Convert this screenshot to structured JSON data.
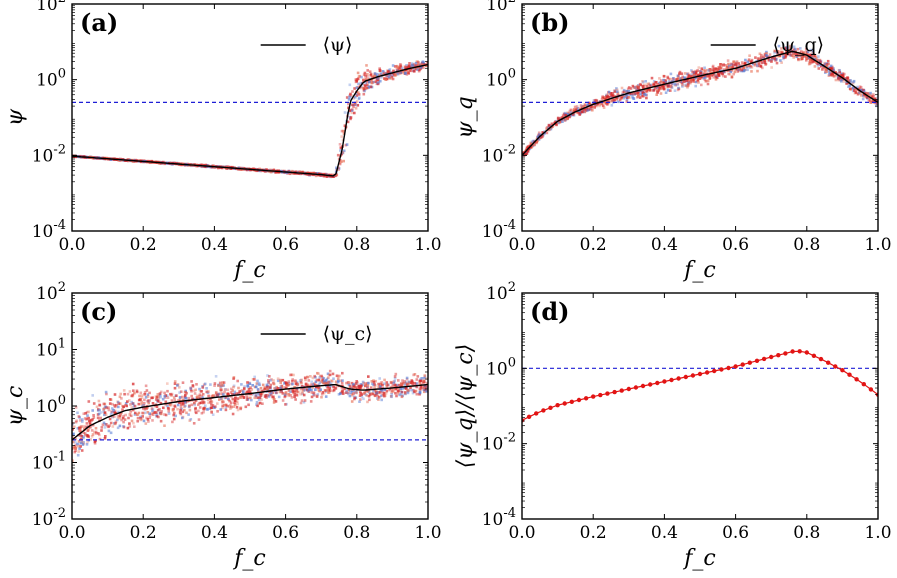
{
  "figure": {
    "background": "#ffffff",
    "colors": {
      "mean_line": "#000000",
      "reference_line": "#1f1fd6",
      "scatter_red": "#d62728",
      "scatter_orange": "#e8735a",
      "scatter_blue": "#5b7fd6",
      "ratio_points": "#e21414"
    }
  },
  "chart_data": [
    {
      "type": "scatter",
      "panel": "(a)",
      "xlabel": "f_c",
      "ylabel": "ψ",
      "x_ticks": [
        "0.0",
        "0.2",
        "0.4",
        "0.6",
        "0.8",
        "1.0"
      ],
      "y_ticks": [
        "10^-4",
        "10^-2",
        "10^0",
        "10^2"
      ],
      "xlim": [
        0.0,
        1.0
      ],
      "ylim_log10": [
        -4,
        2
      ],
      "legend": [
        "⟨ψ⟩"
      ],
      "legend_position": "top-right",
      "reference_line_log10": -0.6,
      "series": [
        {
          "name": "⟨ψ⟩",
          "x": [
            0.0,
            0.1,
            0.2,
            0.3,
            0.4,
            0.5,
            0.6,
            0.7,
            0.74,
            0.76,
            0.78,
            0.8,
            0.82,
            0.86,
            0.9,
            0.95,
            1.0
          ],
          "log10_y": [
            -2.02,
            -2.09,
            -2.16,
            -2.23,
            -2.3,
            -2.37,
            -2.44,
            -2.51,
            -2.55,
            -1.8,
            -0.6,
            -0.3,
            -0.05,
            0.08,
            0.18,
            0.3,
            0.4
          ]
        }
      ],
      "scatter_envelope": [
        [
          0.0,
          0.02
        ],
        [
          0.74,
          0.05
        ],
        [
          0.76,
          0.9
        ],
        [
          0.8,
          0.8
        ],
        [
          0.85,
          0.25
        ],
        [
          1.0,
          0.2
        ]
      ]
    },
    {
      "type": "scatter",
      "panel": "(b)",
      "xlabel": "f_c",
      "ylabel": "ψ_q",
      "x_ticks": [
        "0.0",
        "0.2",
        "0.4",
        "0.6",
        "0.8",
        "1.0"
      ],
      "y_ticks": [
        "10^-4",
        "10^-2",
        "10^0",
        "10^2"
      ],
      "xlim": [
        0.0,
        1.0
      ],
      "ylim_log10": [
        -4,
        2
      ],
      "legend": [
        "⟨ψ_q⟩"
      ],
      "legend_position": "top-right",
      "reference_line_log10": -0.6,
      "series": [
        {
          "name": "⟨ψ_q⟩",
          "x": [
            0.0,
            0.05,
            0.1,
            0.15,
            0.2,
            0.3,
            0.4,
            0.5,
            0.6,
            0.7,
            0.76,
            0.8,
            0.85,
            0.9,
            0.95,
            1.0
          ],
          "log10_y": [
            -2.0,
            -1.5,
            -1.1,
            -0.85,
            -0.65,
            -0.35,
            -0.12,
            0.1,
            0.3,
            0.6,
            0.75,
            0.65,
            0.35,
            0.05,
            -0.3,
            -0.6
          ]
        }
      ],
      "scatter_envelope": [
        [
          0.0,
          0.1
        ],
        [
          0.3,
          0.3
        ],
        [
          0.7,
          0.3
        ],
        [
          1.0,
          0.2
        ]
      ]
    },
    {
      "type": "scatter",
      "panel": "(c)",
      "xlabel": "f_c",
      "ylabel": "ψ_c",
      "x_ticks": [
        "0.0",
        "0.2",
        "0.4",
        "0.6",
        "0.8",
        "1.0"
      ],
      "y_ticks": [
        "10^-2",
        "10^-1",
        "10^0",
        "10^1",
        "10^2"
      ],
      "xlim": [
        0.0,
        1.0
      ],
      "ylim_log10": [
        -2,
        2
      ],
      "legend": [
        "⟨ψ_c⟩"
      ],
      "legend_position": "top-right",
      "reference_line_log10": -0.6,
      "series": [
        {
          "name": "⟨ψ_c⟩",
          "x": [
            0.0,
            0.05,
            0.1,
            0.15,
            0.2,
            0.3,
            0.4,
            0.5,
            0.6,
            0.7,
            0.74,
            0.78,
            0.82,
            0.9,
            1.0
          ],
          "log10_y": [
            -0.6,
            -0.35,
            -0.2,
            -0.08,
            -0.02,
            0.08,
            0.15,
            0.22,
            0.3,
            0.36,
            0.38,
            0.3,
            0.28,
            0.32,
            0.38
          ]
        }
      ],
      "scatter_envelope": [
        [
          0.0,
          0.6
        ],
        [
          0.2,
          0.5
        ],
        [
          0.6,
          0.35
        ],
        [
          1.0,
          0.25
        ]
      ]
    },
    {
      "type": "line",
      "panel": "(d)",
      "xlabel": "f_c",
      "ylabel": "⟨ψ_q⟩/⟨ψ_c⟩",
      "x_ticks": [
        "0.0",
        "0.2",
        "0.4",
        "0.6",
        "0.8",
        "1.0"
      ],
      "y_ticks": [
        "10^-4",
        "10^-2",
        "10^0",
        "10^2"
      ],
      "xlim": [
        0.0,
        1.0
      ],
      "ylim_log10": [
        -4,
        2
      ],
      "reference_line_log10": 0.0,
      "series": [
        {
          "name": "⟨ψ_q⟩/⟨ψ_c⟩",
          "x": [
            0.0,
            0.05,
            0.1,
            0.2,
            0.3,
            0.4,
            0.5,
            0.6,
            0.7,
            0.77,
            0.8,
            0.85,
            0.9,
            0.95,
            1.0
          ],
          "log10_y": [
            -1.38,
            -1.15,
            -0.98,
            -0.75,
            -0.55,
            -0.35,
            -0.15,
            0.05,
            0.3,
            0.47,
            0.42,
            0.2,
            -0.05,
            -0.35,
            -0.7
          ]
        }
      ]
    }
  ]
}
